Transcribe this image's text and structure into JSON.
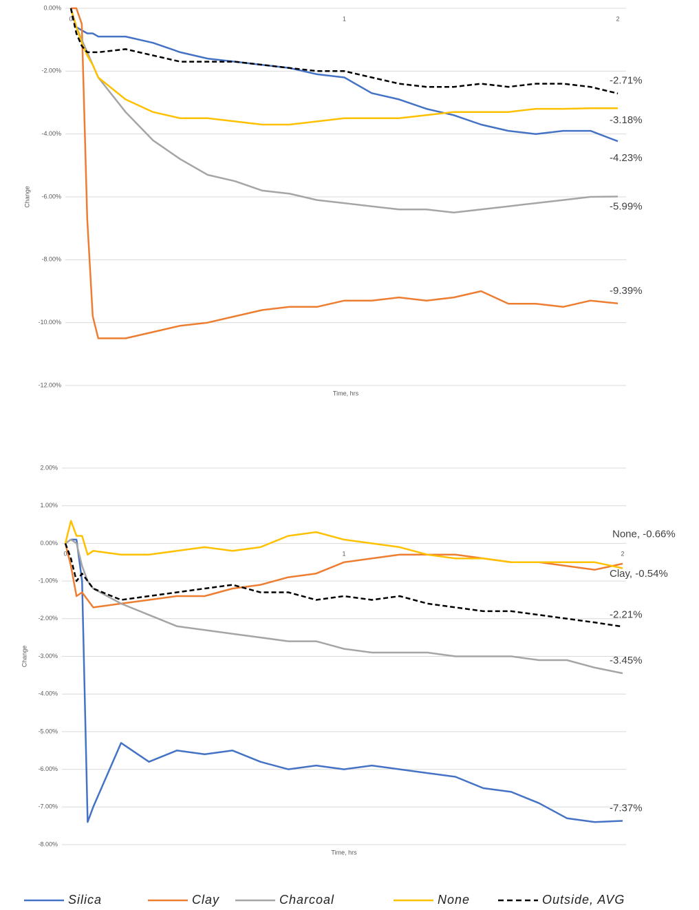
{
  "chart_data": [
    {
      "type": "line",
      "ylabel": "Change",
      "xlabel": "Time, hrs",
      "x": [
        0,
        0.02,
        0.04,
        0.06,
        0.08,
        0.1,
        0.2,
        0.3,
        0.4,
        0.5,
        0.6,
        0.7,
        0.8,
        0.9,
        1.0,
        1.1,
        1.2,
        1.3,
        1.4,
        1.5,
        1.6,
        1.7,
        1.8,
        1.9,
        2.0
      ],
      "xlim": [
        0,
        2
      ],
      "xticks": [
        0,
        1,
        2
      ],
      "ylim": [
        -12,
        0
      ],
      "yticks": [
        {
          "value": 0,
          "label": "0.00%"
        },
        {
          "value": -2,
          "label": "-2.00%"
        },
        {
          "value": -4,
          "label": "-4.00%"
        },
        {
          "value": -6,
          "label": "-6.00%"
        },
        {
          "value": -8,
          "label": "-8.00%"
        },
        {
          "value": -10,
          "label": "-10.00%"
        },
        {
          "value": -12,
          "label": "-12.00%"
        }
      ],
      "grid": true,
      "series": [
        {
          "name": "Silica",
          "color": "#4472c4",
          "end_label": "-4.23%",
          "values": [
            0,
            -0.6,
            -0.7,
            -0.8,
            -0.8,
            -0.9,
            -0.9,
            -1.1,
            -1.4,
            -1.6,
            -1.7,
            -1.8,
            -1.9,
            -2.1,
            -2.2,
            -2.7,
            -2.9,
            -3.2,
            -3.4,
            -3.7,
            -3.9,
            -4.0,
            -3.9,
            -3.9,
            -4.23
          ]
        },
        {
          "name": "Clay",
          "color": "#ed7d31",
          "end_label": "-9.39%",
          "values": [
            0,
            0,
            -0.5,
            -6.7,
            -9.8,
            -10.5,
            -10.5,
            -10.3,
            -10.1,
            -10.0,
            -9.8,
            -9.6,
            -9.5,
            -9.5,
            -9.3,
            -9.3,
            -9.2,
            -9.3,
            -9.2,
            -9.0,
            -9.4,
            -9.4,
            -9.5,
            -9.3,
            -9.39
          ]
        },
        {
          "name": "Charcoal",
          "color": "#a5a5a5",
          "end_label": "-5.99%",
          "values": [
            0,
            -0.6,
            -1.0,
            -1.4,
            -1.8,
            -2.2,
            -3.3,
            -4.2,
            -4.8,
            -5.3,
            -5.5,
            -5.8,
            -5.9,
            -6.1,
            -6.2,
            -6.3,
            -6.4,
            -6.4,
            -6.5,
            -6.4,
            -6.3,
            -6.2,
            -6.1,
            -6.0,
            -5.99
          ]
        },
        {
          "name": "None",
          "color": "#ffc000",
          "end_label": "-3.18%",
          "values": [
            0,
            -0.6,
            -1.1,
            -1.5,
            -1.8,
            -2.2,
            -2.9,
            -3.3,
            -3.5,
            -3.5,
            -3.6,
            -3.7,
            -3.7,
            -3.6,
            -3.5,
            -3.5,
            -3.5,
            -3.4,
            -3.3,
            -3.3,
            -3.3,
            -3.2,
            -3.2,
            -3.18,
            -3.18
          ]
        },
        {
          "name": "Outside, AVG",
          "color": "#000000",
          "dashed": true,
          "end_label": "-2.71%",
          "values": [
            0,
            -0.8,
            -1.2,
            -1.4,
            -1.4,
            -1.4,
            -1.3,
            -1.5,
            -1.7,
            -1.7,
            -1.7,
            -1.8,
            -1.9,
            -2.0,
            -2.0,
            -2.2,
            -2.4,
            -2.5,
            -2.5,
            -2.4,
            -2.5,
            -2.4,
            -2.4,
            -2.5,
            -2.71
          ]
        }
      ]
    },
    {
      "type": "line",
      "ylabel": "Change",
      "xlabel": "Time, hrs",
      "x": [
        0,
        0.02,
        0.04,
        0.06,
        0.08,
        0.1,
        0.2,
        0.3,
        0.4,
        0.5,
        0.6,
        0.7,
        0.8,
        0.9,
        1.0,
        1.1,
        1.2,
        1.3,
        1.4,
        1.5,
        1.6,
        1.7,
        1.8,
        1.9,
        2.0
      ],
      "xlim": [
        0,
        2
      ],
      "xticks": [
        0,
        1,
        2
      ],
      "ylim": [
        -8,
        2
      ],
      "yticks": [
        {
          "value": 2,
          "label": "2.00%"
        },
        {
          "value": 1,
          "label": "1.00%"
        },
        {
          "value": 0,
          "label": "0.00%"
        },
        {
          "value": -1,
          "label": "-1.00%"
        },
        {
          "value": -2,
          "label": "-2.00%"
        },
        {
          "value": -3,
          "label": "-3.00%"
        },
        {
          "value": -4,
          "label": "-4.00%"
        },
        {
          "value": -5,
          "label": "-5.00%"
        },
        {
          "value": -6,
          "label": "-6.00%"
        },
        {
          "value": -7,
          "label": "-7.00%"
        },
        {
          "value": -8,
          "label": "-8.00%"
        }
      ],
      "grid": true,
      "series": [
        {
          "name": "Silica",
          "color": "#4472c4",
          "end_label": "-7.37%",
          "values": [
            0,
            0.1,
            0.1,
            -1.0,
            -7.4,
            -7.0,
            -5.3,
            -5.8,
            -5.5,
            -5.6,
            -5.5,
            -5.8,
            -6.0,
            -5.9,
            -6.0,
            -5.9,
            -6.0,
            -6.1,
            -6.2,
            -6.5,
            -6.6,
            -6.9,
            -7.3,
            -7.4,
            -7.37
          ]
        },
        {
          "name": "Clay",
          "color": "#ed7d31",
          "end_label": "Clay, -0.54%",
          "values": [
            0,
            -0.6,
            -1.4,
            -1.3,
            -1.5,
            -1.7,
            -1.6,
            -1.5,
            -1.4,
            -1.4,
            -1.2,
            -1.1,
            -0.9,
            -0.8,
            -0.5,
            -0.4,
            -0.3,
            -0.3,
            -0.3,
            -0.4,
            -0.5,
            -0.5,
            -0.6,
            -0.7,
            -0.54
          ]
        },
        {
          "name": "Charcoal",
          "color": "#a5a5a5",
          "end_label": "-3.45%",
          "values": [
            0,
            0.1,
            0,
            -0.6,
            -1.0,
            -1.2,
            -1.6,
            -1.9,
            -2.2,
            -2.3,
            -2.4,
            -2.5,
            -2.6,
            -2.6,
            -2.8,
            -2.9,
            -2.9,
            -2.9,
            -3.0,
            -3.0,
            -3.0,
            -3.1,
            -3.1,
            -3.3,
            -3.45
          ]
        },
        {
          "name": "None",
          "color": "#ffc000",
          "end_label": "None, -0.66%",
          "values": [
            0,
            0.6,
            0.2,
            0.2,
            -0.3,
            -0.2,
            -0.3,
            -0.3,
            -0.2,
            -0.1,
            -0.2,
            -0.1,
            0.2,
            0.3,
            0.1,
            0,
            -0.1,
            -0.3,
            -0.4,
            -0.4,
            -0.5,
            -0.5,
            -0.5,
            -0.5,
            -0.66
          ]
        },
        {
          "name": "Outside, AVG",
          "color": "#000000",
          "dashed": true,
          "end_label": "-2.21%",
          "values": [
            0,
            -0.4,
            -1.0,
            -0.8,
            -1.0,
            -1.2,
            -1.5,
            -1.4,
            -1.3,
            -1.2,
            -1.1,
            -1.3,
            -1.3,
            -1.5,
            -1.4,
            -1.5,
            -1.4,
            -1.6,
            -1.7,
            -1.8,
            -1.8,
            -1.9,
            -2.0,
            -2.1,
            -2.21
          ]
        }
      ]
    }
  ]
}
